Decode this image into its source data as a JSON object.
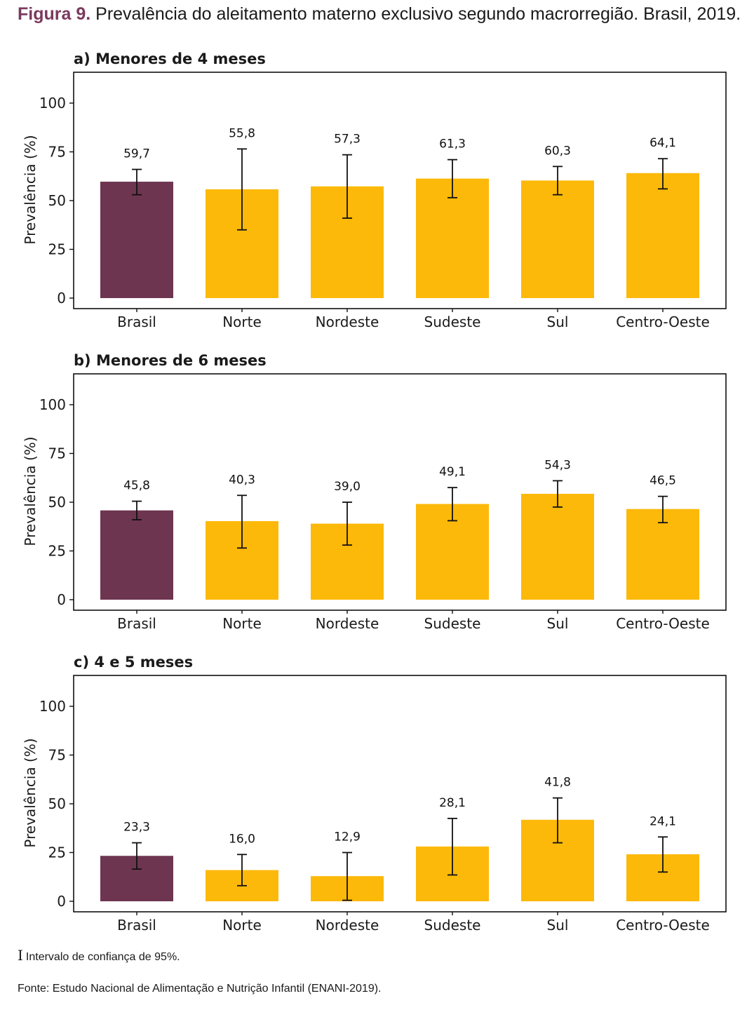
{
  "figure": {
    "label": "Figura 9.",
    "title": "Prevalência do aleitamento materno exclusivo segundo macrorregião. Brasil, 2019."
  },
  "footnotes": {
    "ci_icon": "I",
    "ci_text": "Intervalo de confiança de 95%.",
    "source": "Fonte: Estudo Nacional de Alimentação e Nutrição Infantil (ENANI-2019)."
  },
  "colors": {
    "brasil": "#6e3550",
    "regions": "#fdb90a",
    "errorbar": "#111111",
    "axis": "#111111"
  },
  "chart_data": [
    {
      "type": "bar",
      "title": "a) Menores de 4 meses",
      "ylabel": "Prevalência (%)",
      "xlabel": "",
      "ylim": [
        0,
        115
      ],
      "yticks": [
        "0",
        "25",
        "50",
        "75",
        "100"
      ],
      "categories": [
        "Brasil",
        "Norte",
        "Nordeste",
        "Sudeste",
        "Sul",
        "Centro-Oeste"
      ],
      "values": [
        59.7,
        55.8,
        57.3,
        61.3,
        60.3,
        64.1
      ],
      "value_labels": [
        "59,7",
        "55,8",
        "57,3",
        "61,3",
        "60,3",
        "64,1"
      ],
      "ci_low": [
        53,
        35,
        41,
        51.5,
        53,
        56
      ],
      "ci_high": [
        66,
        76.5,
        73.5,
        71,
        67.5,
        71.5
      ],
      "grid": false,
      "legend": "none"
    },
    {
      "type": "bar",
      "title": "b) Menores de 6 meses",
      "ylabel": "Prevalência (%)",
      "xlabel": "",
      "ylim": [
        0,
        115
      ],
      "yticks": [
        "0",
        "25",
        "50",
        "75",
        "100"
      ],
      "categories": [
        "Brasil",
        "Norte",
        "Nordeste",
        "Sudeste",
        "Sul",
        "Centro-Oeste"
      ],
      "values": [
        45.8,
        40.3,
        39.0,
        49.1,
        54.3,
        46.5
      ],
      "value_labels": [
        "45,8",
        "40,3",
        "39,0",
        "49,1",
        "54,3",
        "46,5"
      ],
      "ci_low": [
        41,
        26.5,
        28,
        40.5,
        47.5,
        39.5
      ],
      "ci_high": [
        50.5,
        53.5,
        50,
        57.5,
        61,
        53
      ],
      "grid": false,
      "legend": "none"
    },
    {
      "type": "bar",
      "title": "c) 4 e 5 meses",
      "ylabel": "Prevalência (%)",
      "xlabel": "",
      "ylim": [
        0,
        115
      ],
      "yticks": [
        "0",
        "25",
        "50",
        "75",
        "100"
      ],
      "categories": [
        "Brasil",
        "Norte",
        "Nordeste",
        "Sudeste",
        "Sul",
        "Centro-Oeste"
      ],
      "values": [
        23.3,
        16.0,
        12.9,
        28.1,
        41.8,
        24.1
      ],
      "value_labels": [
        "23,3",
        "16,0",
        "12,9",
        "28,1",
        "41,8",
        "24,1"
      ],
      "ci_low": [
        16.5,
        8,
        0.5,
        13.5,
        30,
        15
      ],
      "ci_high": [
        30,
        24,
        25,
        42.5,
        53,
        33
      ],
      "grid": false,
      "legend": "none"
    }
  ]
}
